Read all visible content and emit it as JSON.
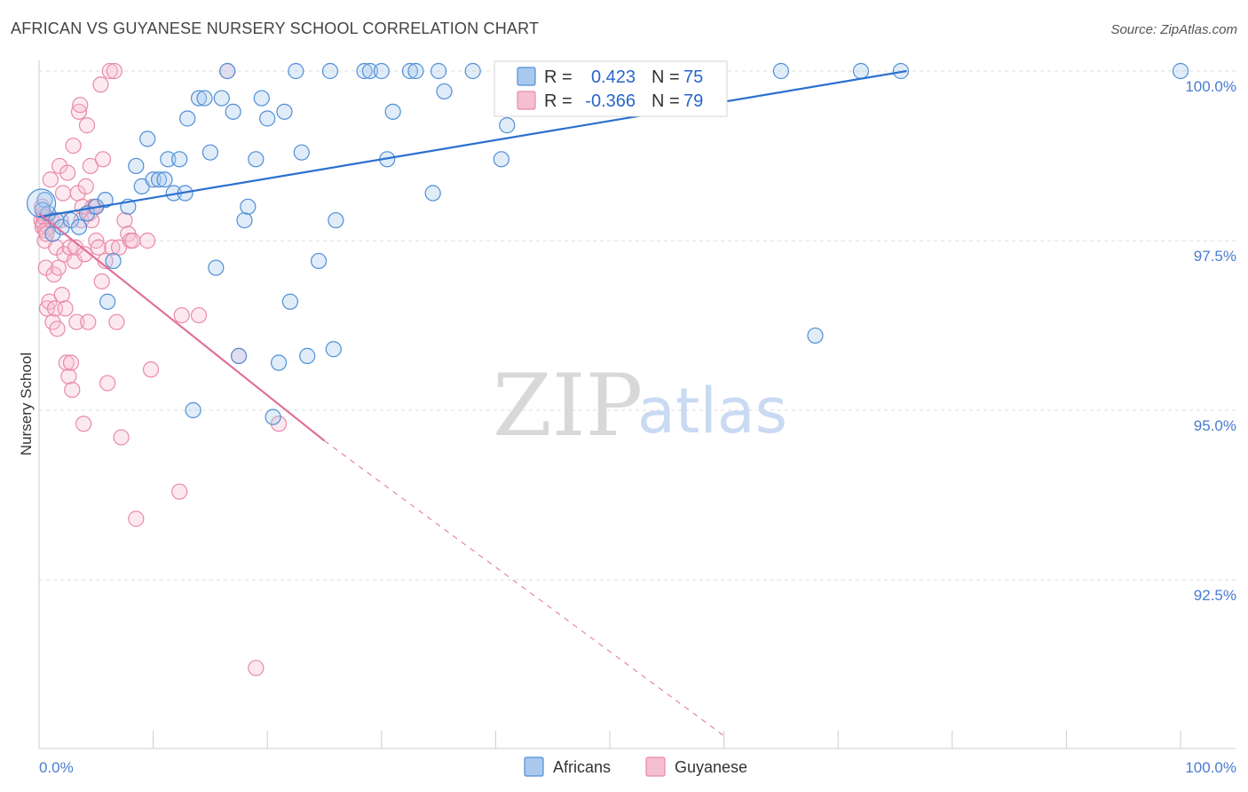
{
  "title": "AFRICAN VS GUYANESE NURSERY SCHOOL CORRELATION CHART",
  "source": "Source: ZipAtlas.com",
  "watermark": {
    "zip": "ZIP",
    "atlas": "atlas"
  },
  "colors": {
    "blue": "#4f8fd6",
    "blue_fill": "#a9c8ee",
    "blue_line": "#2a70cf",
    "pink": "#e98aa8",
    "pink_fill": "#f5bfd0",
    "pink_line": "#e0719a",
    "tick": "#4a7bd0",
    "grid": "#dddddd"
  },
  "legend": {
    "r_label": "R =",
    "n_label": "N =",
    "africans": {
      "r": "0.423",
      "n": "75"
    },
    "guyanese": {
      "r": "-0.366",
      "n": "79"
    }
  },
  "bottom_legend": {
    "africans": "Africans",
    "guyanese": "Guyanese"
  },
  "chart_data": {
    "type": "scatter",
    "title": "AFRICAN VS GUYANESE NURSERY SCHOOL CORRELATION CHART",
    "xlabel": "",
    "ylabel": "Nursery School",
    "xlim": [
      0,
      100
    ],
    "ylim": [
      90.2,
      100.2
    ],
    "x_tick_labels": [
      "0.0%",
      "100.0%"
    ],
    "y_ticks": [
      92.5,
      95.0,
      97.5,
      100.0
    ],
    "y_tick_labels": [
      "92.5%",
      "95.0%",
      "97.5%",
      "100.0%"
    ],
    "series": [
      {
        "name": "Africans",
        "r": 0.423,
        "n": 75,
        "trend": {
          "x0": 0,
          "y0": 97.85,
          "x1": 76,
          "y1": 100.0
        },
        "points": [
          [
            0.5,
            98.1
          ],
          [
            0.8,
            97.9
          ],
          [
            1.2,
            97.6
          ],
          [
            1.5,
            97.8
          ],
          [
            2.0,
            97.7
          ],
          [
            2.8,
            97.8
          ],
          [
            3.5,
            97.7
          ],
          [
            4.2,
            97.9
          ],
          [
            5.0,
            98.0
          ],
          [
            5.8,
            98.1
          ],
          [
            6.5,
            97.2
          ],
          [
            6.0,
            96.6
          ],
          [
            7.8,
            98.0
          ],
          [
            8.5,
            98.6
          ],
          [
            9.0,
            98.3
          ],
          [
            9.5,
            99.0
          ],
          [
            10.0,
            98.4
          ],
          [
            10.5,
            98.4
          ],
          [
            11.0,
            98.4
          ],
          [
            11.3,
            98.7
          ],
          [
            11.8,
            98.2
          ],
          [
            12.3,
            98.7
          ],
          [
            12.8,
            98.2
          ],
          [
            13.0,
            99.3
          ],
          [
            13.5,
            95.0
          ],
          [
            14.0,
            99.6
          ],
          [
            14.5,
            99.6
          ],
          [
            15.0,
            98.8
          ],
          [
            15.5,
            97.1
          ],
          [
            16.0,
            99.6
          ],
          [
            16.5,
            100.0
          ],
          [
            17.0,
            99.4
          ],
          [
            17.5,
            95.8
          ],
          [
            18.0,
            97.8
          ],
          [
            18.3,
            98.0
          ],
          [
            19.0,
            98.7
          ],
          [
            19.5,
            99.6
          ],
          [
            20.0,
            99.3
          ],
          [
            20.5,
            94.9
          ],
          [
            21.0,
            95.7
          ],
          [
            21.5,
            99.4
          ],
          [
            22.0,
            96.6
          ],
          [
            22.5,
            100.0
          ],
          [
            23.0,
            98.8
          ],
          [
            23.5,
            95.8
          ],
          [
            24.5,
            97.2
          ],
          [
            25.5,
            100.0
          ],
          [
            25.8,
            95.9
          ],
          [
            26.0,
            97.8
          ],
          [
            28.5,
            100.0
          ],
          [
            29.0,
            100.0
          ],
          [
            30.0,
            100.0
          ],
          [
            30.5,
            98.7
          ],
          [
            31.0,
            99.4
          ],
          [
            32.5,
            100.0
          ],
          [
            33.0,
            100.0
          ],
          [
            34.5,
            98.2
          ],
          [
            35.0,
            100.0
          ],
          [
            35.5,
            99.7
          ],
          [
            38.0,
            100.0
          ],
          [
            40.5,
            98.7
          ],
          [
            41.0,
            99.2
          ],
          [
            43.0,
            100.0
          ],
          [
            45.0,
            100.0
          ],
          [
            47.0,
            100.0
          ],
          [
            49.0,
            100.0
          ],
          [
            51.0,
            100.0
          ],
          [
            55.0,
            100.0
          ],
          [
            57.0,
            100.0
          ],
          [
            65.0,
            100.0
          ],
          [
            68.0,
            96.1
          ],
          [
            72.0,
            100.0
          ],
          [
            75.5,
            100.0
          ],
          [
            100.0,
            100.0
          ],
          [
            0.3,
            97.95
          ]
        ]
      },
      {
        "name": "Guyanese",
        "r": -0.366,
        "n": 79,
        "trend": {
          "x0": 0,
          "y0": 97.9,
          "x1": 25,
          "y1": 94.55
        },
        "trend_dashed": {
          "x0": 25,
          "y0": 94.55,
          "x1": 60,
          "y1": 90.2
        },
        "points": [
          [
            0.2,
            97.8
          ],
          [
            0.3,
            97.7
          ],
          [
            0.4,
            97.9
          ],
          [
            0.5,
            97.5
          ],
          [
            0.6,
            97.1
          ],
          [
            0.7,
            96.5
          ],
          [
            0.8,
            97.7
          ],
          [
            0.9,
            96.6
          ],
          [
            1.0,
            98.4
          ],
          [
            1.1,
            97.8
          ],
          [
            1.2,
            96.3
          ],
          [
            1.3,
            97.0
          ],
          [
            1.4,
            96.5
          ],
          [
            1.5,
            97.4
          ],
          [
            1.6,
            96.2
          ],
          [
            1.7,
            97.1
          ],
          [
            1.8,
            98.6
          ],
          [
            1.9,
            97.8
          ],
          [
            2.0,
            96.7
          ],
          [
            2.1,
            98.2
          ],
          [
            2.2,
            97.3
          ],
          [
            2.3,
            96.5
          ],
          [
            2.4,
            95.7
          ],
          [
            2.5,
            98.5
          ],
          [
            2.6,
            95.5
          ],
          [
            2.7,
            97.4
          ],
          [
            2.8,
            95.7
          ],
          [
            2.9,
            95.3
          ],
          [
            3.0,
            98.9
          ],
          [
            3.1,
            97.2
          ],
          [
            3.2,
            97.4
          ],
          [
            3.3,
            96.3
          ],
          [
            3.4,
            98.2
          ],
          [
            3.5,
            99.4
          ],
          [
            3.6,
            99.5
          ],
          [
            3.7,
            97.8
          ],
          [
            3.8,
            98.0
          ],
          [
            3.9,
            94.8
          ],
          [
            4.0,
            97.3
          ],
          [
            4.1,
            98.3
          ],
          [
            4.2,
            99.2
          ],
          [
            4.3,
            96.3
          ],
          [
            4.4,
            97.9
          ],
          [
            4.5,
            98.6
          ],
          [
            4.6,
            97.8
          ],
          [
            4.7,
            98.0
          ],
          [
            4.9,
            98.0
          ],
          [
            5.0,
            97.5
          ],
          [
            5.2,
            97.4
          ],
          [
            5.4,
            99.8
          ],
          [
            5.5,
            96.9
          ],
          [
            5.6,
            98.7
          ],
          [
            5.8,
            97.2
          ],
          [
            6.0,
            95.4
          ],
          [
            6.2,
            100.0
          ],
          [
            6.4,
            97.4
          ],
          [
            6.6,
            100.0
          ],
          [
            6.8,
            96.3
          ],
          [
            7.0,
            97.4
          ],
          [
            7.2,
            94.6
          ],
          [
            7.5,
            97.8
          ],
          [
            7.8,
            97.6
          ],
          [
            8.0,
            97.5
          ],
          [
            8.2,
            97.5
          ],
          [
            8.5,
            93.4
          ],
          [
            9.5,
            97.5
          ],
          [
            9.8,
            95.6
          ],
          [
            12.3,
            93.8
          ],
          [
            12.5,
            96.4
          ],
          [
            14.0,
            96.4
          ],
          [
            16.5,
            100.0
          ],
          [
            17.5,
            95.8
          ],
          [
            19.0,
            91.2
          ],
          [
            21.0,
            94.8
          ],
          [
            0.25,
            98.0
          ],
          [
            0.35,
            97.75
          ],
          [
            0.45,
            97.85
          ],
          [
            0.55,
            97.65
          ],
          [
            0.65,
            97.6
          ]
        ]
      }
    ],
    "legend_position": "top-center"
  }
}
